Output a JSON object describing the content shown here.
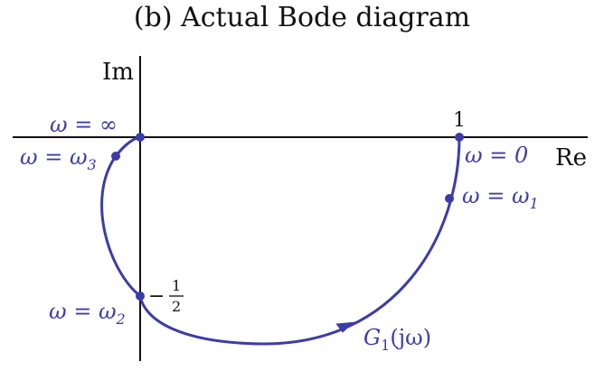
{
  "title": "(b) Actual Bode diagram",
  "axes": {
    "y_label": "Im",
    "x_label": "Re"
  },
  "ticks": {
    "one": "1"
  },
  "points": {
    "w_inf": "ω = ∞",
    "w3": "ω = ω",
    "w3_sub": "3",
    "w2": "ω = ω",
    "w2_sub": "2",
    "w0": "ω = 0",
    "w1": "ω = ω",
    "w1_sub": "1",
    "half_num": "1",
    "half_den": "2",
    "minus": "−"
  },
  "curve": {
    "name": "G",
    "sub": "1",
    "arg": "(jω)"
  },
  "colors": {
    "curve": "#3c3ca8",
    "axes": "#111111"
  }
}
